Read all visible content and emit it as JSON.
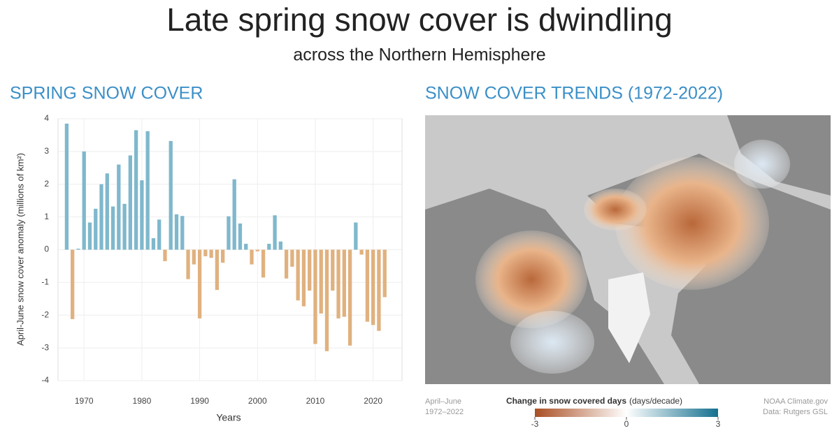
{
  "header": {
    "title": "Late spring snow cover is dwindling",
    "subtitle": "across the Northern Hemisphere"
  },
  "chart_data": {
    "type": "bar",
    "title": "SPRING SNOW COVER",
    "y_label": "April-June snow cover anomaly (millions of km²)",
    "x_label": "Years",
    "x": [
      1967,
      1968,
      1969,
      1970,
      1971,
      1972,
      1973,
      1974,
      1975,
      1976,
      1977,
      1978,
      1979,
      1980,
      1981,
      1982,
      1983,
      1984,
      1985,
      1986,
      1987,
      1988,
      1989,
      1990,
      1991,
      1992,
      1993,
      1994,
      1995,
      1996,
      1997,
      1998,
      1999,
      2000,
      2001,
      2002,
      2003,
      2004,
      2005,
      2006,
      2007,
      2008,
      2009,
      2010,
      2011,
      2012,
      2013,
      2014,
      2015,
      2016,
      2017,
      2018,
      2019,
      2020,
      2021,
      2022
    ],
    "values": [
      3.85,
      -2.12,
      0.03,
      3.0,
      0.83,
      1.25,
      2.0,
      2.33,
      1.32,
      2.6,
      1.4,
      2.88,
      3.65,
      2.12,
      3.62,
      0.35,
      0.92,
      -0.35,
      3.32,
      1.08,
      1.03,
      -0.9,
      -0.45,
      -2.1,
      -0.2,
      -0.25,
      -1.23,
      -0.4,
      1.02,
      2.15,
      0.8,
      0.18,
      -0.45,
      -0.05,
      -0.85,
      0.18,
      1.05,
      0.25,
      -0.88,
      -0.52,
      -1.55,
      -1.73,
      -1.25,
      -2.88,
      -1.95,
      -3.1,
      -1.25,
      -2.1,
      -2.05,
      -2.93,
      0.83,
      -0.15,
      -2.2,
      -2.3,
      -2.48,
      -1.45
    ],
    "positive_color": "#7fb8cc",
    "negative_color": "#e0b17f",
    "xlim": [
      1965.5,
      2025
    ],
    "xticks": [
      1970,
      1980,
      1990,
      2000,
      2010,
      2020
    ],
    "ylim": [
      -4,
      4
    ],
    "yticks": [
      -4,
      -3,
      -2,
      -1,
      0,
      1,
      2,
      3,
      4
    ],
    "grid": true
  },
  "map": {
    "title": "SNOW COVER TRENDS (1972-2022)",
    "legend_title": "Change in snow covered days",
    "legend_unit": "(days/decade)",
    "colorbar": {
      "lim": [
        -3,
        3
      ],
      "ticks": [
        -3,
        0,
        3
      ],
      "colors": [
        "#a94e22",
        "#ffffff",
        "#14708f"
      ]
    },
    "note_left": [
      "April–June",
      "1972–2022"
    ],
    "note_right": [
      "NOAA Climate.gov",
      "Data: Rutgers GSL"
    ]
  }
}
